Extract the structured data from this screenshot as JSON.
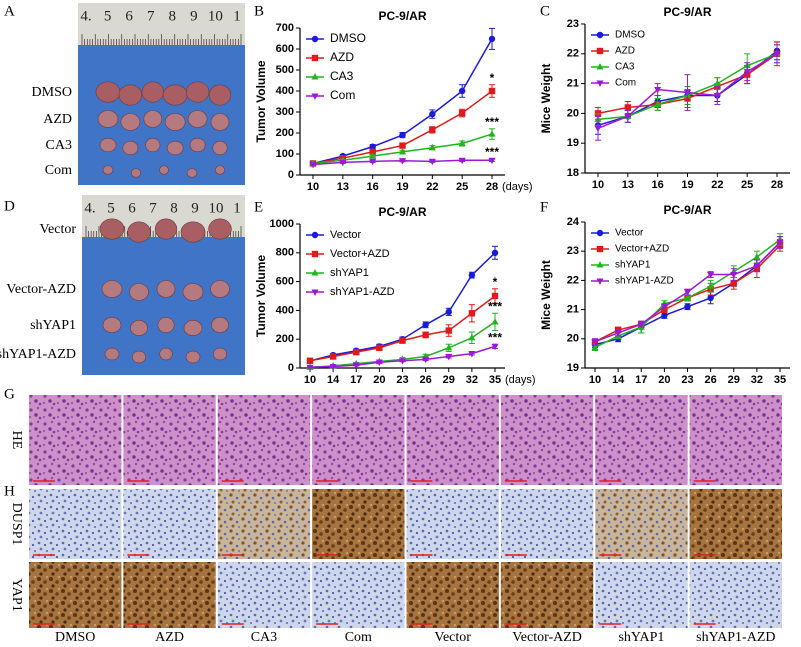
{
  "panel_labels": [
    "A",
    "B",
    "C",
    "D",
    "E",
    "F",
    "G",
    "H"
  ],
  "photo_a": {
    "ruler": [
      "4.",
      "5",
      "6",
      "7",
      "8",
      "9",
      "10",
      "1"
    ],
    "rows": [
      "DMSO",
      "AZD",
      "CA3",
      "Com"
    ]
  },
  "photo_d": {
    "ruler": [
      "4.",
      "5",
      "6",
      "7",
      "8",
      "9",
      "10",
      "1"
    ],
    "rows": [
      "Vector",
      "Vector-AZD",
      "shYAP1",
      "shYAP1-AZD"
    ]
  },
  "histology": {
    "rows": [
      "HE",
      "DUSP1",
      "YAP1"
    ],
    "columns": [
      "DMSO",
      "AZD",
      "CA3",
      "Com",
      "Vector",
      "Vector-AZD",
      "shYAP1",
      "shYAP1-AZD"
    ],
    "stain": [
      [
        "he",
        "he",
        "he",
        "he",
        "he",
        "he",
        "he",
        "he"
      ],
      [
        "blue",
        "blue",
        "mixed",
        "brown",
        "blue",
        "blue",
        "mixed",
        "brown"
      ],
      [
        "brown",
        "brown",
        "blue",
        "blue",
        "brown",
        "brown",
        "blue",
        "blue"
      ]
    ]
  },
  "chart_data": [
    {
      "type": "line",
      "title": "PC-9/AR",
      "y_label": "Tumor Volume",
      "x_unit_label": "(days)",
      "categories": [
        10,
        13,
        16,
        19,
        22,
        25,
        28
      ],
      "ylim": [
        0,
        700
      ],
      "yticks": [
        0,
        100,
        200,
        300,
        400,
        500,
        600,
        700
      ],
      "legend": "upper left",
      "annotations": [
        "*",
        "***",
        "***"
      ],
      "series": [
        {
          "name": "DMSO",
          "color": "#1a1adb",
          "marker": "circle",
          "values": [
            55,
            90,
            135,
            190,
            290,
            400,
            648
          ],
          "errors": [
            5,
            8,
            10,
            12,
            20,
            30,
            50
          ]
        },
        {
          "name": "AZD",
          "color": "#e01a1a",
          "marker": "square",
          "values": [
            55,
            80,
            110,
            140,
            215,
            295,
            400
          ],
          "errors": [
            5,
            6,
            8,
            10,
            15,
            18,
            30
          ]
        },
        {
          "name": "CA3",
          "color": "#1fb51f",
          "marker": "triangle-up",
          "values": [
            55,
            70,
            90,
            110,
            130,
            150,
            195
          ],
          "errors": [
            5,
            6,
            6,
            8,
            10,
            12,
            25
          ]
        },
        {
          "name": "Com",
          "color": "#9a1ad8",
          "marker": "triangle-down",
          "values": [
            50,
            60,
            65,
            68,
            65,
            70,
            70
          ],
          "errors": [
            4,
            5,
            5,
            5,
            5,
            6,
            6
          ]
        }
      ]
    },
    {
      "type": "line",
      "title": "PC-9/AR",
      "y_label": "Mice Weight",
      "categories": [
        10,
        13,
        16,
        19,
        22,
        25,
        28
      ],
      "ylim": [
        18,
        23
      ],
      "yticks": [
        18,
        19,
        20,
        21,
        22,
        23
      ],
      "legend": "upper left",
      "series": [
        {
          "name": "DMSO",
          "color": "#1a1adb",
          "marker": "circle",
          "values": [
            19.6,
            19.9,
            20.4,
            20.6,
            20.6,
            21.3,
            22.1
          ],
          "errors": [
            0.3,
            0.2,
            0.2,
            0.3,
            0.2,
            0.3,
            0.3
          ]
        },
        {
          "name": "AZD",
          "color": "#e01a1a",
          "marker": "square",
          "values": [
            20.0,
            20.2,
            20.3,
            20.5,
            20.9,
            21.3,
            22.0
          ],
          "errors": [
            0.2,
            0.2,
            0.2,
            0.3,
            0.3,
            0.3,
            0.4
          ]
        },
        {
          "name": "CA3",
          "color": "#1fb51f",
          "marker": "triangle-up",
          "values": [
            19.8,
            19.9,
            20.3,
            20.6,
            21.0,
            21.6,
            22.0
          ],
          "errors": [
            0.2,
            0.2,
            0.2,
            0.3,
            0.2,
            0.4,
            0.3
          ]
        },
        {
          "name": "Com",
          "color": "#9a1ad8",
          "marker": "triangle-down",
          "values": [
            19.5,
            19.9,
            20.8,
            20.7,
            20.6,
            21.4,
            22.0
          ],
          "errors": [
            0.4,
            0.2,
            0.2,
            0.6,
            0.3,
            0.3,
            0.3
          ]
        }
      ]
    },
    {
      "type": "line",
      "title": "PC-9/AR",
      "y_label": "Tumor Volume",
      "x_unit_label": "(days)",
      "categories": [
        10,
        14,
        17,
        20,
        23,
        26,
        29,
        32,
        35
      ],
      "ylim": [
        0,
        1000
      ],
      "yticks": [
        0,
        200,
        400,
        600,
        800,
        1000
      ],
      "legend": "upper left",
      "annotations": [
        "*",
        "***",
        "***"
      ],
      "series": [
        {
          "name": "Vector",
          "color": "#1a1adb",
          "marker": "circle",
          "values": [
            50,
            90,
            120,
            150,
            200,
            300,
            390,
            645,
            800
          ],
          "errors": [
            8,
            10,
            12,
            15,
            15,
            20,
            25,
            20,
            45
          ]
        },
        {
          "name": "Vector+AZD",
          "color": "#e01a1a",
          "marker": "square",
          "values": [
            50,
            80,
            110,
            140,
            190,
            230,
            260,
            380,
            500
          ],
          "errors": [
            8,
            10,
            12,
            15,
            15,
            20,
            40,
            60,
            50
          ]
        },
        {
          "name": "shYAP1",
          "color": "#1fb51f",
          "marker": "triangle-up",
          "values": [
            5,
            15,
            30,
            45,
            60,
            80,
            140,
            210,
            320
          ],
          "errors": [
            3,
            5,
            8,
            10,
            12,
            15,
            25,
            40,
            60
          ]
        },
        {
          "name": "shYAP1-AZD",
          "color": "#9a1ad8",
          "marker": "triangle-down",
          "values": [
            5,
            10,
            20,
            40,
            50,
            60,
            80,
            100,
            150
          ],
          "errors": [
            3,
            4,
            5,
            6,
            6,
            8,
            10,
            10,
            15
          ]
        }
      ]
    },
    {
      "type": "line",
      "title": "PC-9/AR",
      "y_label": "Mice Weight",
      "categories": [
        10,
        14,
        17,
        20,
        23,
        26,
        29,
        32,
        35
      ],
      "ylim": [
        19,
        24
      ],
      "yticks": [
        19,
        20,
        21,
        22,
        23,
        24
      ],
      "legend": "upper left",
      "series": [
        {
          "name": "Vector",
          "color": "#1a1adb",
          "marker": "circle",
          "values": [
            19.8,
            20.0,
            20.4,
            20.8,
            21.1,
            21.4,
            21.9,
            22.5,
            23.3
          ],
          "errors": [
            0.1,
            0.1,
            0.2,
            0.1,
            0.1,
            0.2,
            0.1,
            0.2,
            0.2
          ]
        },
        {
          "name": "Vector+AZD",
          "color": "#e01a1a",
          "marker": "square",
          "values": [
            19.9,
            20.3,
            20.5,
            21.0,
            21.4,
            21.7,
            21.9,
            22.4,
            23.2
          ],
          "errors": [
            0.1,
            0.1,
            0.1,
            0.1,
            0.1,
            0.2,
            0.2,
            0.3,
            0.2
          ]
        },
        {
          "name": "shYAP1",
          "color": "#1fb51f",
          "marker": "triangle-up",
          "values": [
            19.7,
            20.1,
            20.4,
            21.2,
            21.4,
            21.8,
            22.3,
            22.8,
            23.4
          ],
          "errors": [
            0.1,
            0.1,
            0.2,
            0.1,
            0.1,
            0.2,
            0.2,
            0.2,
            0.2
          ]
        },
        {
          "name": "shYAP1-AZD",
          "color": "#9a1ad8",
          "marker": "triangle-down",
          "values": [
            19.9,
            20.2,
            20.5,
            21.1,
            21.6,
            22.2,
            22.2,
            22.5,
            23.3
          ],
          "errors": [
            0.1,
            0.1,
            0.1,
            0.1,
            0.1,
            0.1,
            0.2,
            0.2,
            0.2
          ]
        }
      ]
    }
  ]
}
